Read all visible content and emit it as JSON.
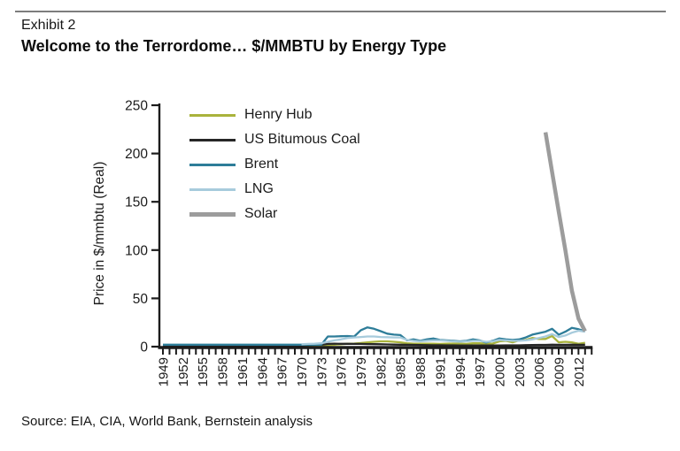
{
  "header": {
    "exhibit_label": "Exhibit 2",
    "title": "Welcome to the Terrordome… $/MMBTU by Energy Type"
  },
  "footer": {
    "source": "Source: EIA, CIA, World Bank, Bernstein analysis"
  },
  "chart_data": {
    "type": "line",
    "title": "Welcome to the Terrordome… $/MMBTU by Energy Type",
    "xlabel": "",
    "ylabel": "Price in $/mmbtu (Real)",
    "ylim": [
      0,
      250
    ],
    "ytick_step": 50,
    "yticks": [
      0,
      50,
      100,
      150,
      200,
      250
    ],
    "x_range": [
      1949,
      2013
    ],
    "xtick_label_years": [
      1949,
      1952,
      1955,
      1958,
      1961,
      1964,
      1967,
      1970,
      1973,
      1976,
      1979,
      1982,
      1985,
      1988,
      1991,
      1994,
      1997,
      2000,
      2003,
      2006,
      2009,
      2012
    ],
    "minor_ticks_every_year": true,
    "minor_tick_end_year": 2014,
    "grid": false,
    "legend_position": "top-left-inside",
    "axis_color": "#1c1c1c",
    "series": [
      {
        "name": "Henry Hub",
        "color": "#a9b33c",
        "width": 2.3,
        "start_year": 1949,
        "values": [
          1.5,
          1.5,
          1.5,
          1.5,
          1.5,
          1.5,
          1.5,
          1.5,
          1.5,
          1.5,
          1.5,
          1.5,
          1.5,
          1.5,
          1.5,
          1.5,
          1.5,
          1.5,
          1.5,
          1.5,
          1.5,
          1.5,
          1.5,
          1.5,
          1.5,
          1.5,
          2,
          2.5,
          3,
          3.2,
          3.8,
          4.5,
          5,
          5.5,
          5.5,
          5,
          4.5,
          3.5,
          3,
          3,
          3,
          3,
          2.8,
          3,
          3.2,
          3,
          2.8,
          3.5,
          3.5,
          3,
          3.2,
          5.5,
          6,
          4.5,
          6.5,
          7,
          9,
          8,
          8,
          11,
          4.5,
          5,
          4.5,
          3,
          4
        ]
      },
      {
        "name": "US Bitumous Coal",
        "color": "#262626",
        "width": 2.3,
        "start_year": 1949,
        "values": [
          1.3,
          1.3,
          1.3,
          1.3,
          1.3,
          1.3,
          1.3,
          1.3,
          1.3,
          1.3,
          1.3,
          1.3,
          1.3,
          1.3,
          1.3,
          1.3,
          1.3,
          1.3,
          1.3,
          1.3,
          1.3,
          1.5,
          1.7,
          1.8,
          2,
          2.8,
          3,
          2.9,
          2.9,
          2.8,
          2.8,
          2.7,
          2.6,
          2.5,
          2.3,
          2.1,
          2,
          1.9,
          1.8,
          1.7,
          1.6,
          1.5,
          1.5,
          1.4,
          1.4,
          1.3,
          1.3,
          1.3,
          1.3,
          1.3,
          1.3,
          1.3,
          1.4,
          1.4,
          1.4,
          1.6,
          1.7,
          1.8,
          1.8,
          2,
          1.9,
          1.9,
          2,
          1.9,
          1.9
        ]
      },
      {
        "name": "Brent",
        "color": "#2e7d99",
        "width": 2.3,
        "start_year": 1949,
        "values": [
          2,
          2,
          2,
          2,
          2,
          2,
          2,
          2,
          2,
          2,
          2,
          2,
          2,
          2,
          2,
          2,
          2,
          2,
          2,
          2,
          2,
          2,
          2,
          2,
          2,
          10.5,
          10.5,
          10.8,
          11,
          10.5,
          17,
          20,
          18.5,
          16,
          13.5,
          12.5,
          12,
          6.5,
          7.5,
          6,
          7.5,
          8.5,
          7,
          6.5,
          6,
          5.5,
          6,
          7.5,
          6.5,
          4.2,
          6,
          8.5,
          7.5,
          7,
          7.5,
          9.5,
          12.5,
          14,
          15.5,
          18.5,
          12.5,
          15.5,
          19.5,
          18,
          16
        ]
      },
      {
        "name": "LNG",
        "color": "#a7cbdc",
        "width": 2.3,
        "start_year": 1970,
        "values": [
          2.5,
          2.8,
          3,
          3.5,
          5,
          6.5,
          7.5,
          9,
          9.5,
          10,
          10.5,
          10.5,
          10,
          9.8,
          9.5,
          9.5,
          7,
          6,
          5.5,
          6,
          6.5,
          6.5,
          6,
          5.5,
          5,
          5.5,
          6,
          6,
          5,
          5.5,
          7,
          6.5,
          6,
          6,
          6.5,
          7.5,
          9,
          10.5,
          13,
          10,
          11.5,
          14.5,
          16.5,
          15.5
        ]
      },
      {
        "name": "Solar",
        "color": "#9c9c9c",
        "width": 4.5,
        "start_year": 2007,
        "values": [
          222,
          181,
          140,
          100,
          58,
          29,
          16
        ]
      }
    ]
  }
}
